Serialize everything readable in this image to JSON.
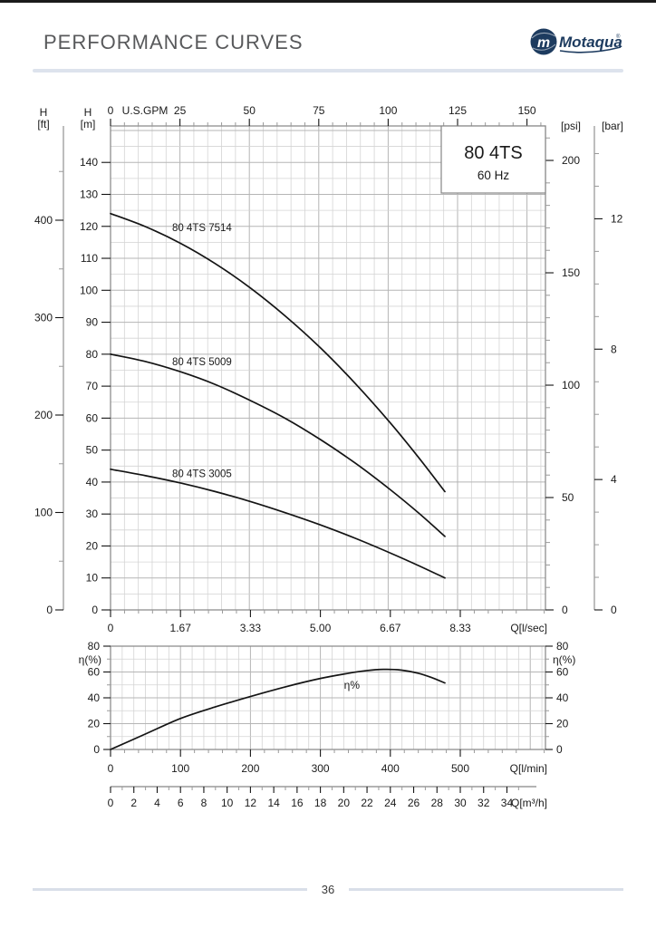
{
  "page": {
    "top_title": "PERFORMANCE CURVES",
    "page_number": "36",
    "logo": {
      "brand": "Motaqua",
      "monogram": "m",
      "registered_mark": "®"
    },
    "colors": {
      "brand_navy": "#1d3b5f",
      "header_gray": "#58595b",
      "divider_blue": "#dde3ed"
    }
  },
  "chart_data": [
    {
      "name": "head-capacity",
      "type": "line",
      "title": "80 4TS",
      "subtitle": "60 Hz",
      "x_unit": "l/min",
      "y_unit": "m",
      "xlim": [
        0,
        622
      ],
      "ylim": [
        0,
        151
      ],
      "grid": true,
      "legend_position": "none",
      "axes": {
        "top_gpm": {
          "label": "U.S.GPM",
          "ticks": [
            0,
            25,
            50,
            75,
            100,
            125,
            150
          ],
          "minor_step": 5
        },
        "bottom_lsec": {
          "label": "Q[l/sec]",
          "ticks": [
            "0",
            "1.67",
            "3.33",
            "5.00",
            "6.67",
            "8.33"
          ],
          "lmin_per_tick": 100
        },
        "left_ft": {
          "label": [
            "H",
            "[ft]"
          ],
          "ticks": [
            0,
            100,
            200,
            300,
            400
          ],
          "minor_step": 50,
          "m_per_unit": 0.3048
        },
        "left_m": {
          "label": [
            "H",
            "[m]"
          ],
          "ticks": [
            0,
            10,
            20,
            30,
            40,
            50,
            60,
            70,
            80,
            90,
            100,
            110,
            120,
            130,
            140
          ]
        },
        "right_psi": {
          "label": "[psi]",
          "ticks": [
            0,
            50,
            100,
            150,
            200
          ],
          "minor_step": 10,
          "m_per_unit": 0.7031
        },
        "right_bar": {
          "label": "[bar]",
          "ticks": [
            0,
            4,
            8,
            12
          ],
          "minor_step": 1,
          "m_per_unit": 10.197
        }
      },
      "series": [
        {
          "name": "80 4TS 7514",
          "label_at": {
            "x": 88,
            "y": 118.5
          },
          "points": [
            [
              0,
              124
            ],
            [
              50,
              119.9
            ],
            [
              100,
              114.7
            ],
            [
              150,
              108.3
            ],
            [
              200,
              100.7
            ],
            [
              250,
              91.9
            ],
            [
              300,
              82.0
            ],
            [
              350,
              70.8
            ],
            [
              400,
              58.5
            ],
            [
              440,
              47.8
            ],
            [
              478,
              37.0
            ]
          ]
        },
        {
          "name": "80 4TS 5009",
          "label_at": {
            "x": 88,
            "y": 76.5
          },
          "points": [
            [
              0,
              80
            ],
            [
              50,
              77.7
            ],
            [
              100,
              74.5
            ],
            [
              150,
              70.5
            ],
            [
              200,
              65.5
            ],
            [
              250,
              59.9
            ],
            [
              300,
              53.3
            ],
            [
              350,
              45.9
            ],
            [
              400,
              37.6
            ],
            [
              440,
              30.4
            ],
            [
              478,
              23.0
            ]
          ]
        },
        {
          "name": "80 4TS 3005",
          "label_at": {
            "x": 88,
            "y": 41.5
          },
          "points": [
            [
              0,
              44
            ],
            [
              50,
              42.0
            ],
            [
              100,
              39.7
            ],
            [
              150,
              37.0
            ],
            [
              200,
              33.9
            ],
            [
              250,
              30.4
            ],
            [
              300,
              26.6
            ],
            [
              350,
              22.4
            ],
            [
              400,
              17.8
            ],
            [
              440,
              13.9
            ],
            [
              478,
              10.0
            ]
          ]
        }
      ]
    },
    {
      "name": "efficiency",
      "type": "line",
      "x_unit": "l/min",
      "y_unit": "%",
      "xlim": [
        0,
        622
      ],
      "ylim": [
        0,
        80
      ],
      "grid": true,
      "axes": {
        "left_eta": {
          "label": "η(%)",
          "ticks": [
            0,
            20,
            40,
            60,
            80
          ],
          "minor_step": 10
        },
        "right_eta": {
          "label": "η(%)",
          "ticks": [
            0,
            20,
            40,
            60,
            80
          ],
          "minor_step": 10
        },
        "bottom_lmin": {
          "label": "Q[l/min]",
          "ticks": [
            0,
            100,
            200,
            300,
            400,
            500
          ],
          "minor_step": 20
        },
        "bottom_m3h": {
          "label": "Q[m³/h]",
          "ticks": [
            0,
            2,
            4,
            6,
            8,
            10,
            12,
            14,
            16,
            18,
            20,
            22,
            24,
            26,
            28,
            30,
            32,
            34
          ],
          "minor_step": 1,
          "lmin_per_unit": 16.667
        }
      },
      "series": [
        {
          "name": "η%",
          "label_at": {
            "x": 345,
            "y": 47
          },
          "points": [
            [
              0,
              0
            ],
            [
              50,
              12
            ],
            [
              100,
              24
            ],
            [
              150,
              33
            ],
            [
              200,
              41
            ],
            [
              250,
              48.5
            ],
            [
              300,
              55
            ],
            [
              340,
              59
            ],
            [
              365,
              61
            ],
            [
              390,
              62
            ],
            [
              415,
              61.5
            ],
            [
              440,
              59
            ],
            [
              460,
              55.5
            ],
            [
              478,
              51.5
            ]
          ]
        }
      ]
    }
  ]
}
